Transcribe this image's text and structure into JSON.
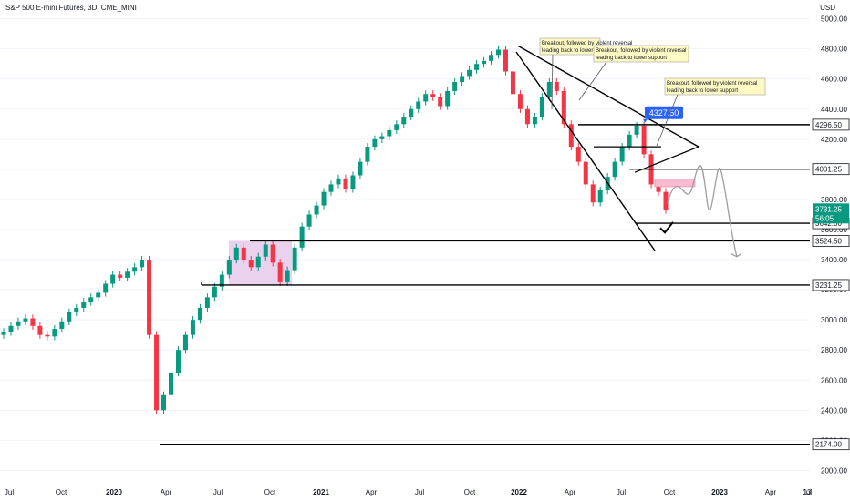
{
  "header": {
    "symbol_line": "S&P 500 E-mini Futures, 3D, CME_MINI",
    "currency": "USD"
  },
  "chart_data": {
    "type": "candlestick",
    "yticks": [
      2000,
      2200,
      2400,
      2600,
      2800,
      3000,
      3200,
      3400,
      3600,
      3800,
      4000,
      4200,
      4400,
      4600,
      4800,
      5000
    ],
    "ytick_labels": [
      "2000.00",
      "2200.00",
      "2400.00",
      "2600.00",
      "2800.00",
      "3000.00",
      "3200.00",
      "3400.00",
      "3600.00",
      "3800.00",
      "4000.00",
      "4200.00",
      "4400.00",
      "4600.00",
      "4800.00",
      "5000.00"
    ],
    "x_labels": [
      "Jul",
      "Oct",
      "2020",
      "Apr",
      "Jul",
      "Oct",
      "2021",
      "Apr",
      "Jul",
      "Oct",
      "2022",
      "Apr",
      "Jul",
      "Oct",
      "2023",
      "Apr",
      "Jul",
      "13"
    ],
    "ylim": [
      1930,
      5040
    ],
    "last_price": "3731.25",
    "countdown": "56:05",
    "price_levels": [
      {
        "value": 4296.5,
        "label": "4296.50"
      },
      {
        "value": 4001.25,
        "label": "4001.25"
      },
      {
        "value": 3642.0,
        "label": "3642.00"
      },
      {
        "value": 3524.5,
        "label": "3524.50"
      },
      {
        "value": 3231.25,
        "label": "3231.25"
      },
      {
        "value": 2174.0,
        "label": "2174.00"
      }
    ],
    "price_callout": "4327.50",
    "annotations": [
      "Breakout, followed by violent reversal leading back to lower support",
      "Breakout, followed by violent reversal leading back to lower support",
      "Breakout, followed by violent reversal leading back to lower support"
    ],
    "colors": {
      "up": "#089981",
      "down": "#f23645",
      "callout": "#2962ff",
      "last_price": "#089981"
    },
    "closes": [
      2920,
      2960,
      2990,
      3010,
      2960,
      2900,
      2890,
      2940,
      2990,
      3050,
      3080,
      3120,
      3150,
      3180,
      3240,
      3300,
      3280,
      3320,
      3350,
      3400,
      2900,
      2400,
      2500,
      2650,
      2800,
      2900,
      3000,
      3080,
      3150,
      3220,
      3300,
      3400,
      3480,
      3400,
      3350,
      3420,
      3500,
      3380,
      3250,
      3330,
      3480,
      3620,
      3700,
      3760,
      3850,
      3900,
      3940,
      3870,
      3960,
      4050,
      4150,
      4200,
      4220,
      4260,
      4300,
      4350,
      4400,
      4450,
      4500,
      4480,
      4420,
      4520,
      4580,
      4620,
      4660,
      4700,
      4720,
      4760,
      4795,
      4650,
      4500,
      4400,
      4300,
      4350,
      4480,
      4580,
      4520,
      4300,
      4150,
      4050,
      3900,
      3780,
      3860,
      3950,
      4050,
      4150,
      4230,
      4290,
      4100,
      3900,
      3850,
      3731
    ]
  }
}
